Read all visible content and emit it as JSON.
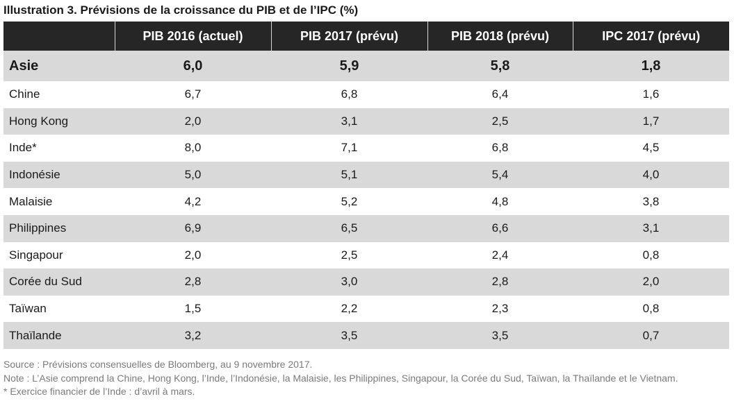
{
  "title": "Illustration 3. Prévisions de la croissance du PIB et de l’IPC (%)",
  "columns": [
    "",
    "PIB 2016 (actuel)",
    "PIB 2017 (prévu)",
    "PIB 2018 (prévu)",
    "IPC 2017 (prévu)"
  ],
  "region": {
    "name": "Asie",
    "values": [
      "6,0",
      "5,9",
      "5,8",
      "1,8"
    ]
  },
  "rows": [
    {
      "name": "Chine",
      "values": [
        "6,7",
        "6,8",
        "6,4",
        "1,6"
      ]
    },
    {
      "name": "Hong Kong",
      "values": [
        "2,0",
        "3,1",
        "2,5",
        "1,7"
      ]
    },
    {
      "name": "Inde*",
      "values": [
        "8,0",
        "7,1",
        "6,8",
        "4,5"
      ]
    },
    {
      "name": "Indonésie",
      "values": [
        "5,0",
        "5,1",
        "5,4",
        "4,0"
      ]
    },
    {
      "name": "Malaisie",
      "values": [
        "4,2",
        "5,2",
        "4,8",
        "3,8"
      ]
    },
    {
      "name": "Philippines",
      "values": [
        "6,9",
        "6,5",
        "6,6",
        "3,1"
      ]
    },
    {
      "name": "Singapour",
      "values": [
        "2,0",
        "2,5",
        "2,4",
        "0,8"
      ]
    },
    {
      "name": "Corée du Sud",
      "values": [
        "2,8",
        "3,0",
        "2,8",
        "2,0"
      ]
    },
    {
      "name": "Taïwan",
      "values": [
        "1,5",
        "2,2",
        "2,3",
        "0,8"
      ]
    },
    {
      "name": "Thaïlande",
      "values": [
        "3,2",
        "3,5",
        "3,5",
        "0,7"
      ]
    }
  ],
  "notes": {
    "source": "Source : Prévisions consensuelles de Bloomberg, au 9 novembre 2017.",
    "note": "Note : L’Asie comprend la Chine, Hong Kong, l’Inde, l’Indonésie, la Malaisie, les Philippines, Singapour, la Corée du Sud, Taïwan, la Thaïlande et le Vietnam.",
    "footnote": "* Exercice financier de l’Inde : d’avril à mars."
  },
  "colors": {
    "header_bg": "#262626",
    "header_text": "#ffffff",
    "shade_row": "#d9d9d9",
    "notes_text": "#7a7a7a"
  }
}
